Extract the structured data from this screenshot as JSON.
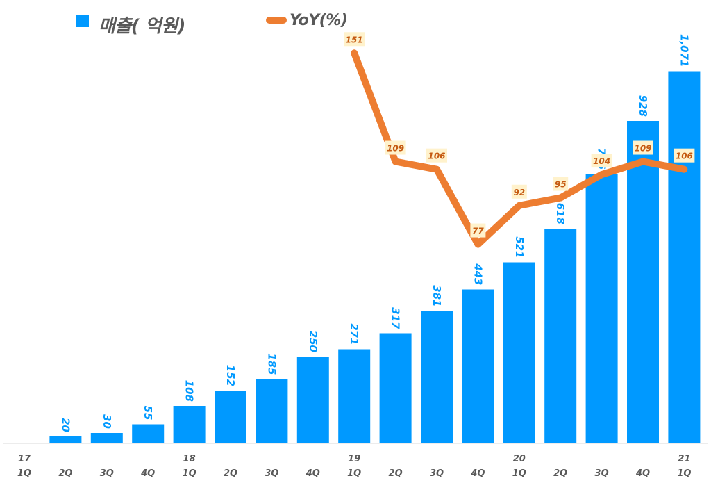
{
  "legend": {
    "sales_label": "매출( 억원)",
    "yoy_label": "YoY(%)"
  },
  "colors": {
    "bar": "#0099FF",
    "bar_label": "#0099FF",
    "line": "#ED7D31",
    "line_label_bg": "#FFF2CC",
    "line_label_text": "#C55A11",
    "axis_label": "#595959",
    "axis_line": "#D9D9D9"
  },
  "chart_data": {
    "type": "bar",
    "title": "",
    "xlabel": "",
    "ylabel": "",
    "categories": [
      "17 1Q",
      "17 2Q",
      "17 3Q",
      "17 4Q",
      "18 1Q",
      "18 2Q",
      "18 3Q",
      "18 4Q",
      "19 1Q",
      "19 2Q",
      "19 3Q",
      "19 4Q",
      "20 1Q",
      "20 2Q",
      "20 3Q",
      "20 4Q",
      "21 1Q"
    ],
    "tick_labels": [
      {
        "year": "17",
        "quarter": "1Q"
      },
      {
        "year": "",
        "quarter": "2Q"
      },
      {
        "year": "",
        "quarter": "3Q"
      },
      {
        "year": "",
        "quarter": "4Q"
      },
      {
        "year": "18",
        "quarter": "1Q"
      },
      {
        "year": "",
        "quarter": "2Q"
      },
      {
        "year": "",
        "quarter": "3Q"
      },
      {
        "year": "",
        "quarter": "4Q"
      },
      {
        "year": "19",
        "quarter": "1Q"
      },
      {
        "year": "",
        "quarter": "2Q"
      },
      {
        "year": "",
        "quarter": "3Q"
      },
      {
        "year": "",
        "quarter": "4Q"
      },
      {
        "year": "20",
        "quarter": "1Q"
      },
      {
        "year": "",
        "quarter": "2Q"
      },
      {
        "year": "",
        "quarter": "3Q"
      },
      {
        "year": "",
        "quarter": "4Q"
      },
      {
        "year": "21",
        "quarter": "1Q"
      }
    ],
    "series": [
      {
        "name": "매출( 억원)",
        "type": "bar",
        "axis": "primary",
        "values": [
          null,
          20,
          30,
          55,
          108,
          152,
          185,
          250,
          271,
          317,
          381,
          443,
          521,
          618,
          776,
          928,
          1071
        ],
        "labels": [
          "",
          "20",
          "30",
          "55",
          "108",
          "152",
          "185",
          "250",
          "271",
          "317",
          "381",
          "443",
          "521",
          "618",
          "776",
          "928",
          "1,071"
        ]
      },
      {
        "name": "YoY(%)",
        "type": "line",
        "axis": "secondary",
        "values": [
          null,
          null,
          null,
          null,
          null,
          null,
          null,
          null,
          151,
          109,
          106,
          77,
          92,
          95,
          104,
          109,
          106
        ],
        "labels": [
          "",
          "",
          "",
          "",
          "",
          "",
          "",
          "",
          "151",
          "109",
          "106",
          "77",
          "92",
          "95",
          "104",
          "109",
          "106"
        ]
      }
    ],
    "ylim": [
      0,
      1071
    ],
    "y2lim": [
      0,
      151
    ],
    "grid": false,
    "legend_position": "top"
  }
}
